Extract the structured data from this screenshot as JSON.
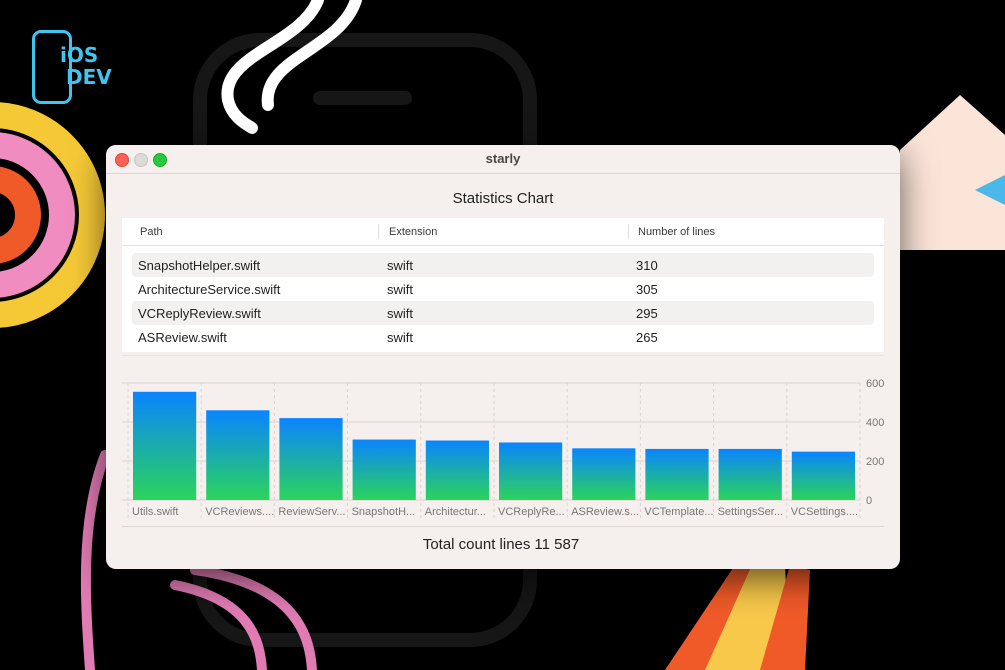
{
  "window": {
    "title": "starly",
    "heading": "Statistics Chart",
    "traffic_lights": [
      "close",
      "minimize",
      "zoom"
    ]
  },
  "brand": {
    "logo_line1": "iOS",
    "logo_line2": "DEV",
    "color": "#3ec6f0"
  },
  "table": {
    "headers": [
      "Path",
      "Extension",
      "Number of lines"
    ],
    "rows": [
      {
        "path": "SnapshotHelper.swift",
        "extension": "swift",
        "lines": "310"
      },
      {
        "path": "ArchitectureService.swift",
        "extension": "swift",
        "lines": "305"
      },
      {
        "path": "VCReplyReview.swift",
        "extension": "swift",
        "lines": "295"
      },
      {
        "path": "ASReview.swift",
        "extension": "swift",
        "lines": "265"
      }
    ]
  },
  "chart_data": {
    "type": "bar",
    "categories": [
      "Utils.swift",
      "VCReviews....",
      "ReviewServ...",
      "SnapshotH...",
      "Architectur...",
      "VCReplyRe...",
      "ASReview.s...",
      "VCTemplate...",
      "SettingsSer...",
      "VCSettings...."
    ],
    "values": [
      555,
      460,
      420,
      310,
      305,
      295,
      265,
      262,
      262,
      248
    ],
    "yticks": [
      0,
      200,
      400,
      600
    ],
    "ylim": [
      0,
      600
    ],
    "axis_position": "right",
    "grid": true,
    "bar_gradient": [
      "#0a84ff",
      "#2bd45a"
    ]
  },
  "footer": {
    "total_label": "Total count lines",
    "total_value": "11 587"
  }
}
